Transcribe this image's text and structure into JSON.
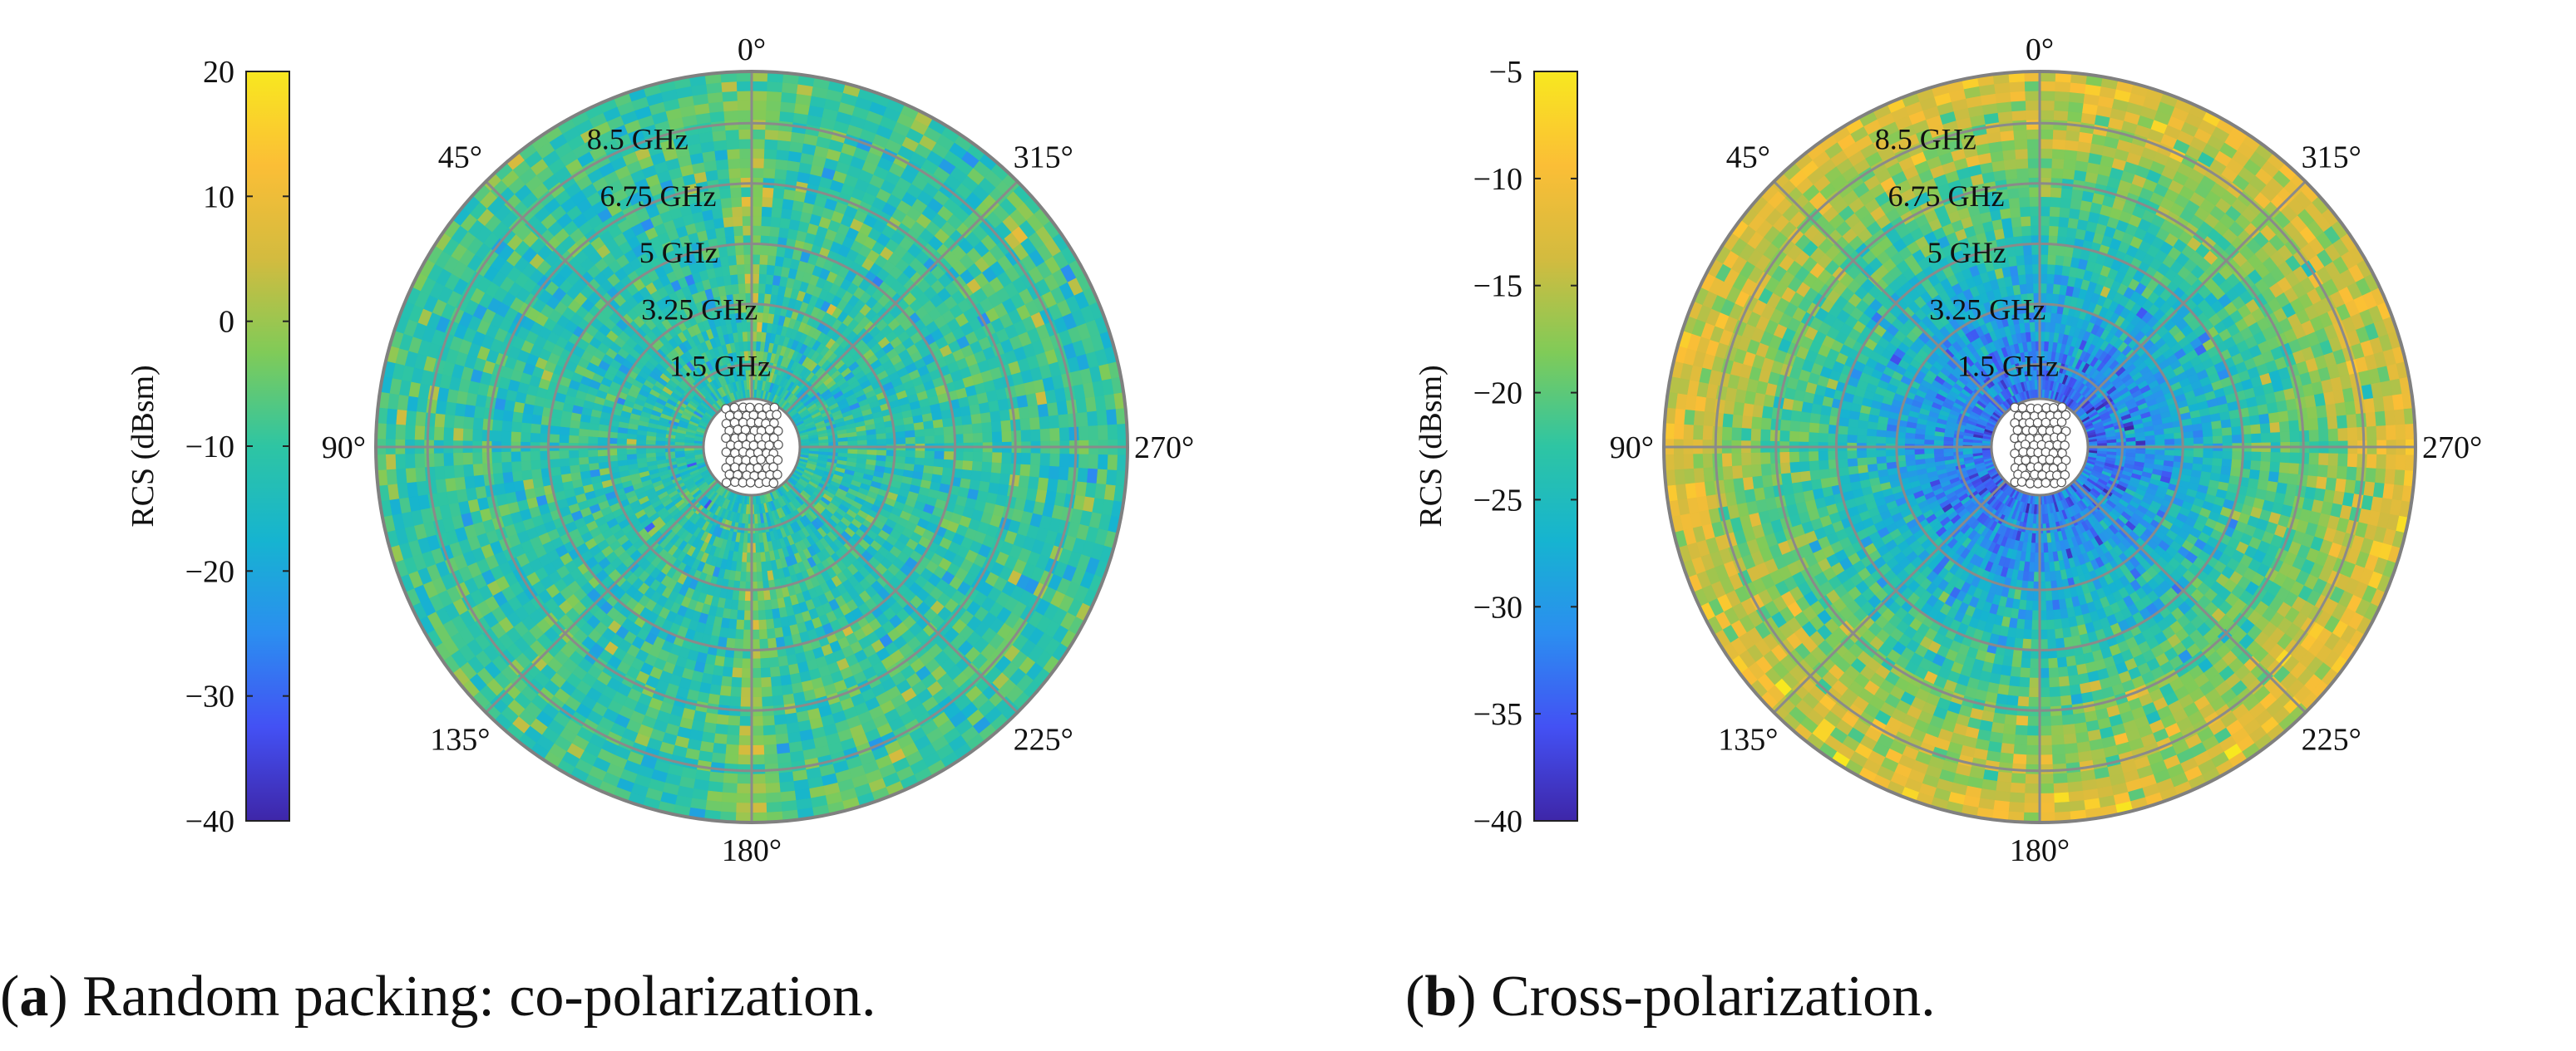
{
  "colors": {
    "ring_stroke": "#808080",
    "grid_stroke": "#8a8a8a",
    "colormap": [
      "#3e26a8",
      "#4351f4",
      "#2b8ef0",
      "#16b4d0",
      "#2ec5a3",
      "#80cb58",
      "#d3bb3f",
      "#fbbe36",
      "#f8e81f"
    ]
  },
  "chart_data": [
    {
      "type": "heatmap",
      "subtype": "polar",
      "panel": "a",
      "caption_label": "a",
      "caption_text": "Random packing: co-polarization.",
      "colorbar": {
        "label": "RCS (dBsm)",
        "range": [
          -40,
          20
        ],
        "ticks": [
          20,
          10,
          0,
          -10,
          -20,
          -30,
          -40
        ],
        "tick_labels": [
          "20",
          "10",
          "0",
          "−10",
          "−20",
          "−30",
          "−40"
        ]
      },
      "angle_labels": [
        {
          "deg": 0,
          "text": "0°"
        },
        {
          "deg": 45,
          "text": "45°"
        },
        {
          "deg": 90,
          "text": "90°"
        },
        {
          "deg": 135,
          "text": "135°"
        },
        {
          "deg": 180,
          "text": "180°"
        },
        {
          "deg": 225,
          "text": "225°"
        },
        {
          "deg": 270,
          "text": "270°"
        },
        {
          "deg": 315,
          "text": "315°"
        }
      ],
      "radial_axis": {
        "unit": "GHz",
        "range": [
          0.5,
          10.0
        ],
        "rings": [
          {
            "value": 1.5,
            "label": "1.5 GHz"
          },
          {
            "value": 3.25,
            "label": "3.25 GHz"
          },
          {
            "value": 5.0,
            "label": "5 GHz"
          },
          {
            "value": 6.75,
            "label": "6.75 GHz"
          },
          {
            "value": 8.5,
            "label": "8.5 GHz"
          }
        ]
      },
      "field": {
        "baseline_dbsm": -12,
        "spread_dbsm": 5,
        "forward_lobe_dbsm": 8,
        "forward_lobe_angles_deg": [
          0,
          180
        ],
        "trend_per_ghz": 0.3
      }
    },
    {
      "type": "heatmap",
      "subtype": "polar",
      "panel": "b",
      "caption_label": "b",
      "caption_text": "Cross-polarization.",
      "colorbar": {
        "label": "RCS (dBsm)",
        "range": [
          -40,
          -5
        ],
        "ticks": [
          -5,
          -10,
          -15,
          -20,
          -25,
          -30,
          -35,
          -40
        ],
        "tick_labels": [
          "−5",
          "−10",
          "−15",
          "−20",
          "−25",
          "−30",
          "−35",
          "−40"
        ]
      },
      "angle_labels": [
        {
          "deg": 0,
          "text": "0°"
        },
        {
          "deg": 45,
          "text": "45°"
        },
        {
          "deg": 90,
          "text": "90°"
        },
        {
          "deg": 135,
          "text": "135°"
        },
        {
          "deg": 180,
          "text": "180°"
        },
        {
          "deg": 225,
          "text": "225°"
        },
        {
          "deg": 270,
          "text": "270°"
        },
        {
          "deg": 315,
          "text": "315°"
        }
      ],
      "radial_axis": {
        "unit": "GHz",
        "range": [
          0.5,
          10.0
        ],
        "rings": [
          {
            "value": 1.5,
            "label": "1.5 GHz"
          },
          {
            "value": 3.25,
            "label": "3.25 GHz"
          },
          {
            "value": 5.0,
            "label": "5 GHz"
          },
          {
            "value": 6.75,
            "label": "6.75 GHz"
          },
          {
            "value": 8.5,
            "label": "8.5 GHz"
          }
        ]
      },
      "field": {
        "baseline_dbsm": -34,
        "spread_dbsm": 3,
        "forward_lobe_dbsm": 0,
        "forward_lobe_angles_deg": [
          0,
          180
        ],
        "trend_per_ghz": 2.3
      }
    }
  ]
}
